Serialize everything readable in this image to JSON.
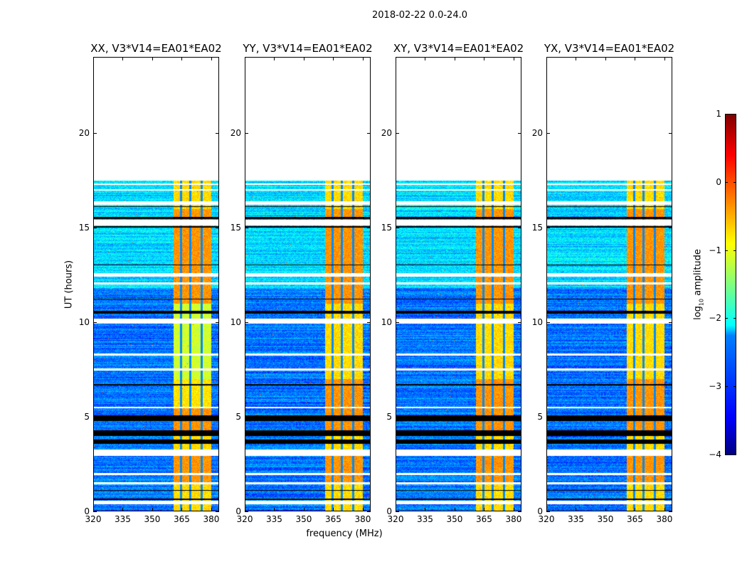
{
  "chart_data": {
    "type": "heatmap",
    "title": "2018-02-22 0.0-24.0",
    "xlabel": "frequency (MHz)",
    "ylabel": "UT (hours)",
    "xlim": [
      320,
      384
    ],
    "ylim": [
      0,
      24
    ],
    "xticks": [
      "320",
      "335",
      "350",
      "365",
      "380"
    ],
    "xtick_values": [
      320,
      335,
      350,
      365,
      380
    ],
    "yticks": [
      "0",
      "5",
      "10",
      "15",
      "20"
    ],
    "ytick_values": [
      0,
      5,
      10,
      15,
      20
    ],
    "data_time_range_hours": [
      0,
      17.5
    ],
    "high_amplitude_band_mhz": [
      360.5,
      380
    ],
    "band_gaps_mhz": [
      364.5,
      369.2,
      375
    ],
    "background_log_amplitude": -2.8,
    "band_log_amplitude": -0.7,
    "flagged_white_hours": [
      [
        0.4,
        0.58
      ],
      [
        1.45,
        1.55
      ],
      [
        1.95,
        2.05
      ],
      [
        2.95,
        3.3
      ],
      [
        5.45,
        5.55
      ],
      [
        7.45,
        7.55
      ],
      [
        8.25,
        8.35
      ],
      [
        9.95,
        10.2
      ],
      [
        12.0,
        12.1
      ],
      [
        12.4,
        12.6
      ],
      [
        15.1,
        15.4
      ],
      [
        16.2,
        16.4
      ],
      [
        16.95,
        17.05
      ],
      [
        17.25,
        17.35
      ]
    ],
    "flagged_black_hours": [
      [
        0.62,
        0.7
      ],
      [
        1.1,
        1.15
      ],
      [
        3.6,
        3.8
      ],
      [
        4.0,
        4.3
      ],
      [
        4.8,
        5.1
      ],
      [
        6.65,
        6.75
      ],
      [
        10.45,
        10.6
      ],
      [
        11.2,
        11.25
      ],
      [
        13.0,
        13.05
      ],
      [
        15.0,
        15.07
      ],
      [
        15.45,
        15.55
      ],
      [
        16.08,
        16.15
      ]
    ],
    "panels": [
      {
        "title": "XX, V3*V14=EA01*EA02"
      },
      {
        "title": "YY, V3*V14=EA01*EA02"
      },
      {
        "title": "XY, V3*V14=EA01*EA02"
      },
      {
        "title": "YX, V3*V14=EA01*EA02"
      }
    ],
    "colorbar": {
      "label_main": "log",
      "label_sub": "10",
      "label_rest": " amplitude",
      "ticks": [
        "1",
        "0",
        "−1",
        "−2",
        "−3",
        "−4"
      ],
      "tick_values": [
        1,
        0,
        -1,
        -2,
        -3,
        -4
      ],
      "range": [
        -4,
        1
      ],
      "colormap": "jet"
    }
  }
}
